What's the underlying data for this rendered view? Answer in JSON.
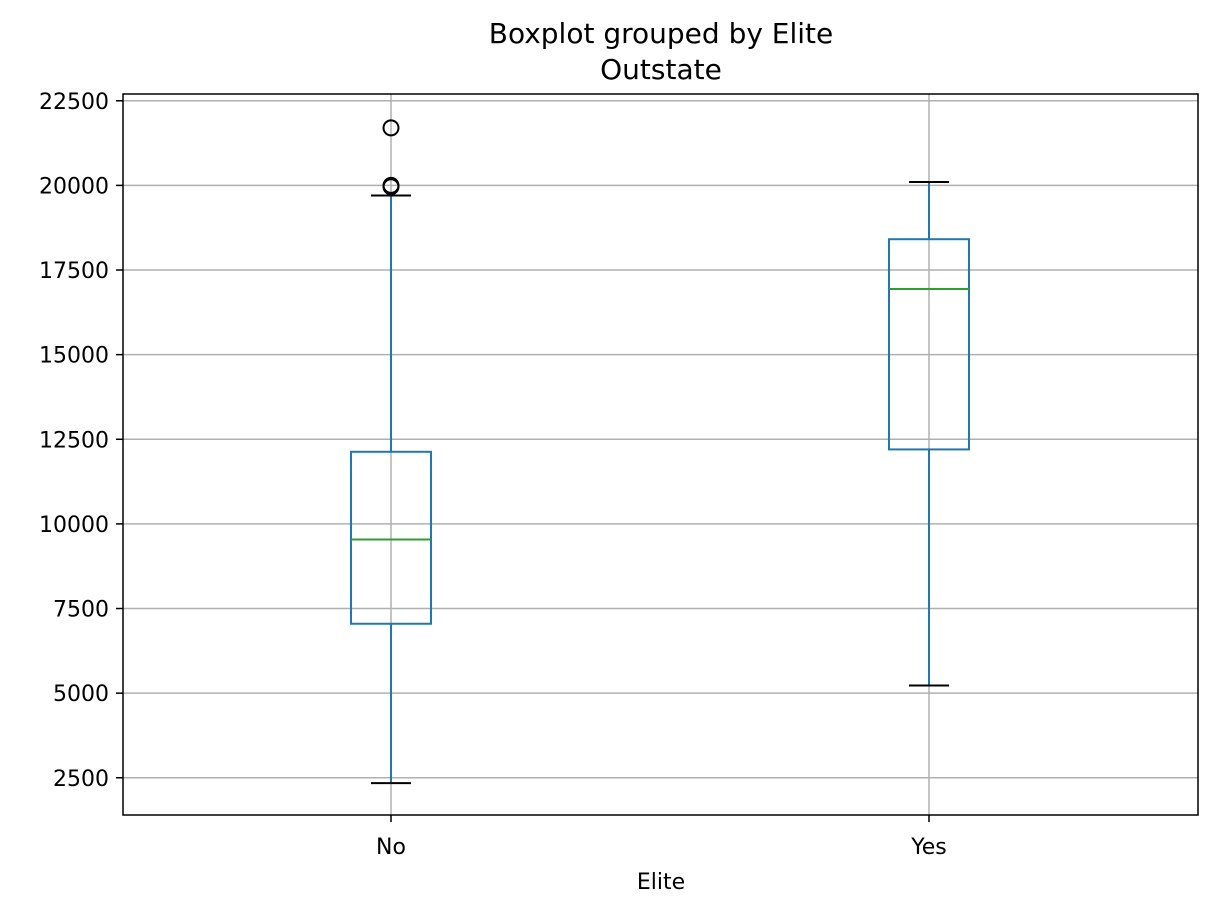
{
  "chart_data": {
    "type": "box",
    "title": "Boxplot grouped by Elite",
    "subtitle": "Outstate",
    "xlabel": "Elite",
    "ylabel": "",
    "ylim": [
      1400,
      22700
    ],
    "yticks": [
      2500,
      5000,
      7500,
      10000,
      12500,
      15000,
      17500,
      20000,
      22500
    ],
    "ytick_labels": [
      "2500",
      "5000",
      "7500",
      "10000",
      "12500",
      "15000",
      "17500",
      "20000",
      "22500"
    ],
    "grid": true,
    "categories": [
      "No",
      "Yes"
    ],
    "boxes": [
      {
        "category": "No",
        "whisker_low": 2340,
        "q1": 7050,
        "median": 9540,
        "q3": 12130,
        "whisker_high": 19700,
        "outliers": [
          19960,
          20000,
          21700
        ]
      },
      {
        "category": "Yes",
        "whisker_low": 5225,
        "q1": 12200,
        "median": 16940,
        "q3": 18410,
        "whisker_high": 20100,
        "outliers": []
      }
    ],
    "colors": {
      "box": "#1f77b4",
      "median": "#2ca02c",
      "whisker_cap": "#000000",
      "outlier": "#000000",
      "grid": "#b0b0b0"
    }
  }
}
